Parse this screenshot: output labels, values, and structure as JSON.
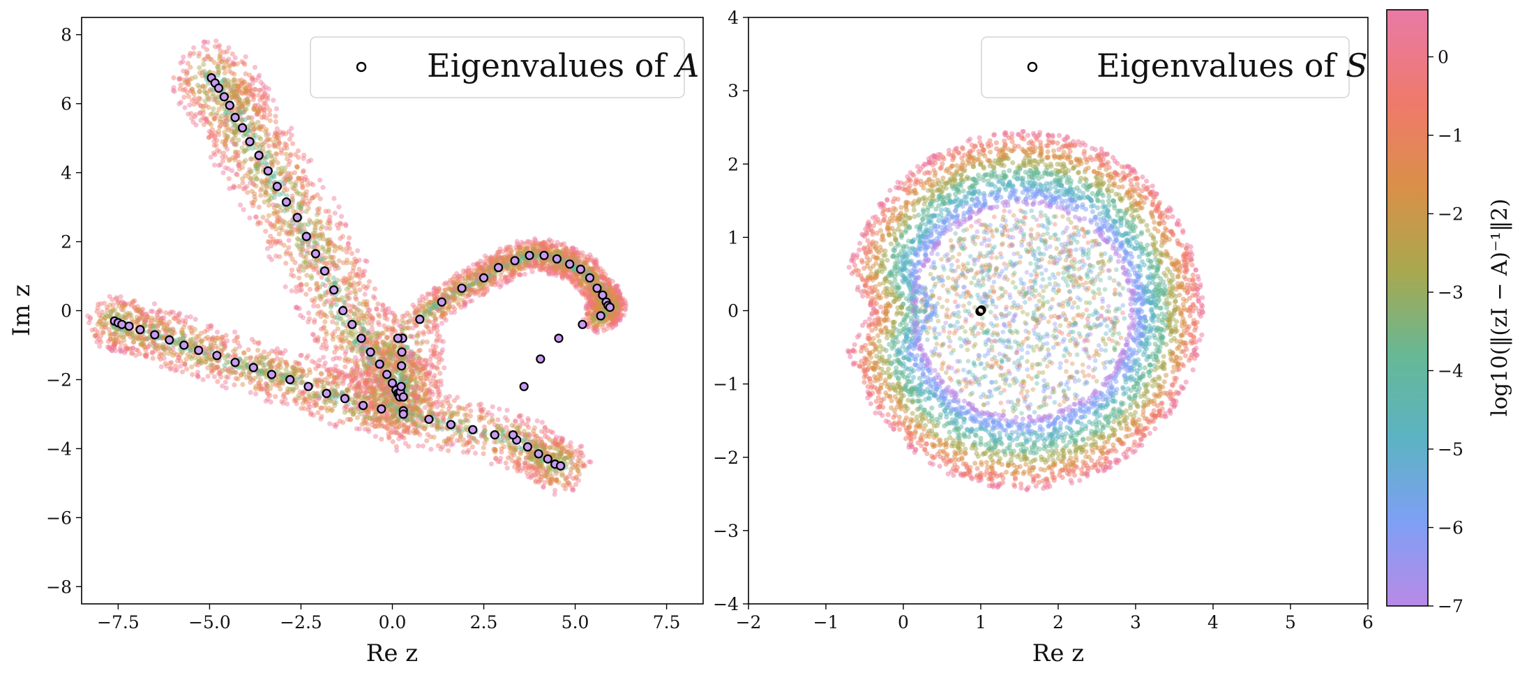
{
  "chart_data": [
    {
      "type": "scatter",
      "xlabel": "Re z",
      "ylabel": "Im z",
      "xlim": [
        -8.5,
        8.5
      ],
      "ylim": [
        -8.5,
        8.5
      ],
      "xticks": [
        -7.5,
        -5.0,
        -2.5,
        0.0,
        2.5,
        5.0,
        7.5
      ],
      "xtick_labels": [
        "−7.5",
        "−5.0",
        "−2.5",
        "0.0",
        "2.5",
        "5.0",
        "7.5"
      ],
      "yticks": [
        -8,
        -6,
        -4,
        -2,
        0,
        2,
        4,
        6,
        8
      ],
      "ytick_labels": [
        "−8",
        "−6",
        "−4",
        "−2",
        "0",
        "2",
        "4",
        "6",
        "8"
      ],
      "legend": {
        "label": "Eigenvalues of",
        "symbol": "A",
        "placement": "top-right"
      },
      "series": [
        {
          "name": "Eigenvalues of A",
          "marker": "open-circle",
          "x": [
            -4.95,
            -4.85,
            -4.75,
            -4.6,
            -4.45,
            -4.3,
            -4.1,
            -3.9,
            -3.65,
            -3.4,
            -3.15,
            -2.9,
            -2.6,
            -2.35,
            -2.1,
            -1.85,
            -1.6,
            -1.35,
            -1.1,
            -0.85,
            -0.6,
            -0.35,
            -0.15,
            0.0,
            0.1,
            0.15,
            0.18,
            0.2,
            0.22,
            0.24,
            0.25,
            0.26,
            0.28,
            0.3,
            0.15,
            0.3,
            -7.6,
            -7.5,
            -7.4,
            -7.2,
            -6.9,
            -6.5,
            -6.1,
            -5.7,
            -5.3,
            -4.8,
            -4.3,
            -3.8,
            -3.3,
            -2.8,
            -2.3,
            -1.8,
            -1.3,
            -0.8,
            -0.3,
            0.3,
            1.0,
            1.6,
            2.2,
            2.8,
            3.4,
            3.7,
            4.0,
            4.25,
            4.45,
            4.6,
            0.75,
            1.35,
            1.9,
            2.5,
            2.9,
            3.35,
            3.75,
            4.15,
            4.5,
            4.85,
            5.15,
            5.4,
            5.6,
            5.75,
            5.85,
            5.9,
            5.95,
            5.7,
            5.2,
            4.55,
            4.05,
            3.6,
            3.3
          ],
          "y": [
            6.75,
            6.6,
            6.45,
            6.2,
            5.95,
            5.6,
            5.3,
            4.9,
            4.5,
            4.05,
            3.6,
            3.15,
            2.7,
            2.15,
            1.65,
            1.15,
            0.6,
            0.0,
            -0.4,
            -0.8,
            -1.2,
            -1.55,
            -1.85,
            -2.1,
            -2.3,
            -2.4,
            -2.45,
            -2.5,
            -2.35,
            -2.2,
            -1.6,
            -1.2,
            -0.8,
            -2.9,
            -0.8,
            -2.5,
            -0.3,
            -0.35,
            -0.4,
            -0.45,
            -0.55,
            -0.7,
            -0.85,
            -1.0,
            -1.15,
            -1.3,
            -1.5,
            -1.65,
            -1.85,
            -2.0,
            -2.2,
            -2.4,
            -2.55,
            -2.75,
            -2.85,
            -3.0,
            -3.15,
            -3.3,
            -3.45,
            -3.6,
            -3.75,
            -3.95,
            -4.15,
            -4.3,
            -4.45,
            -4.5,
            -0.25,
            0.25,
            0.65,
            0.95,
            1.25,
            1.45,
            1.6,
            1.6,
            1.5,
            1.35,
            1.2,
            0.95,
            0.65,
            0.45,
            0.25,
            0.15,
            0.1,
            -0.15,
            -0.4,
            -0.8,
            -1.4,
            -2.2,
            -3.6
          ]
        }
      ]
    },
    {
      "type": "scatter",
      "xlabel": "Re z",
      "ylabel": "",
      "xlim": [
        -2,
        6
      ],
      "ylim": [
        -4,
        4
      ],
      "xticks": [
        -2,
        -1,
        0,
        1,
        2,
        3,
        4,
        5,
        6
      ],
      "xtick_labels": [
        "−2",
        "−1",
        "0",
        "1",
        "2",
        "3",
        "4",
        "5",
        "6"
      ],
      "yticks": [
        -4,
        -3,
        -2,
        -1,
        0,
        1,
        2,
        3,
        4
      ],
      "ytick_labels": [
        "−4",
        "−3",
        "−2",
        "−1",
        "0",
        "1",
        "2",
        "3",
        "4"
      ],
      "legend": {
        "label": "Eigenvalues of",
        "symbol": "S",
        "placement": "top-right"
      },
      "series": [
        {
          "name": "Eigenvalues of S",
          "marker": "open-circle",
          "x": [
            1.0,
            1.01,
            0.99
          ],
          "y": [
            0.0,
            0.01,
            -0.01
          ]
        }
      ]
    }
  ],
  "colorbar": {
    "label": "log10(‖(zI − A)⁻¹‖2)",
    "range": [
      -7,
      0.6
    ],
    "ticks": [
      0,
      -1,
      -2,
      -3,
      -4,
      -5,
      -6,
      -7
    ],
    "tick_labels": [
      "0",
      "−1",
      "−2",
      "−3",
      "−4",
      "−5",
      "−6",
      "−7"
    ],
    "colors": [
      "#b98ae6",
      "#7f9ff5",
      "#5cb3c3",
      "#66b896",
      "#a8a84f",
      "#d99048",
      "#ef7a6a",
      "#ee789b"
    ]
  }
}
